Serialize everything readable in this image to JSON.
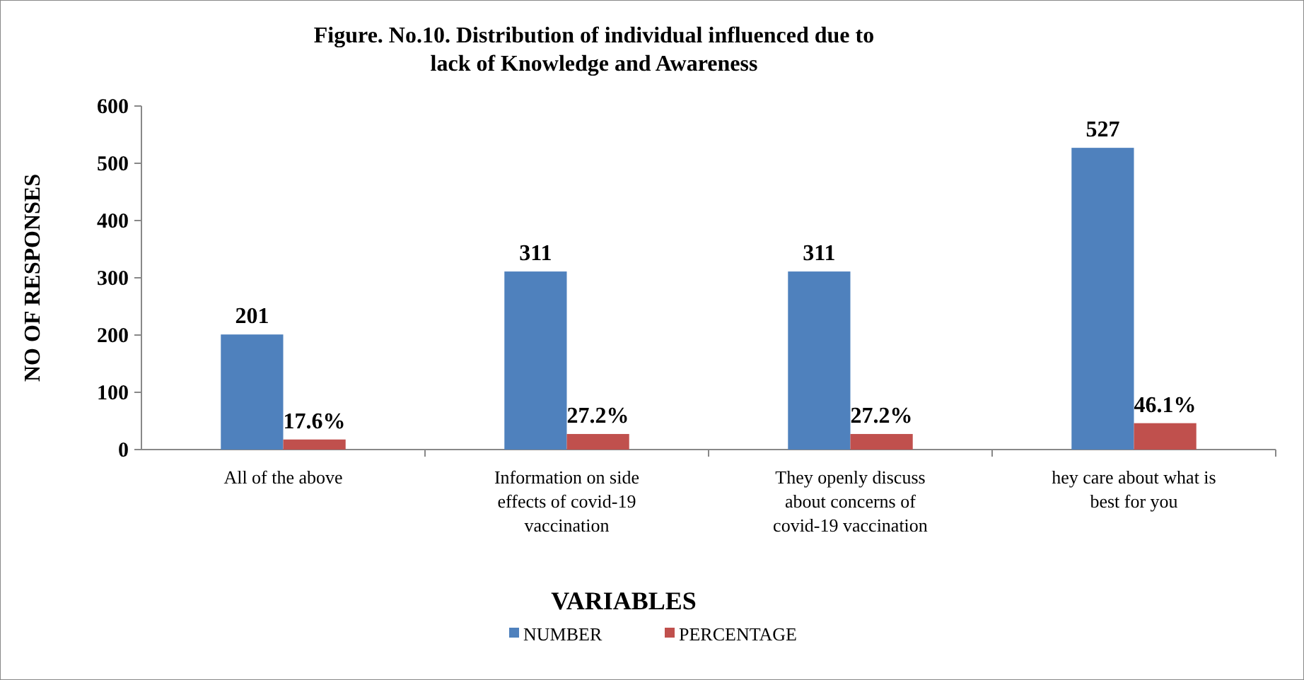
{
  "chart_data": {
    "type": "bar",
    "title": "Figure. No.10. Distribution of individual influenced due to lack of Knowledge and Awareness",
    "xlabel": "VARIABLES",
    "ylabel": "NO OF RESPONSES",
    "categories": [
      "All of the above",
      "Information on side effects of covid-19 vaccination",
      "They openly discuss about concerns of covid-19 vaccination",
      "hey care about what is best for you"
    ],
    "series": [
      {
        "name": "NUMBER",
        "color": "#4f81bd",
        "values": [
          201,
          311,
          311,
          527
        ],
        "value_labels": [
          "201",
          "311",
          "311",
          "527"
        ]
      },
      {
        "name": "PERCENTAGE",
        "color": "#c0504d",
        "values": [
          17.6,
          27.2,
          27.2,
          46.1
        ],
        "value_labels": [
          "17.6%",
          "27.2%",
          "27.2%",
          "46.1%"
        ]
      }
    ],
    "ylim": [
      0,
      600
    ],
    "yticks": [
      0,
      100,
      200,
      300,
      400,
      500,
      600
    ],
    "grid": false,
    "legend": "bottom"
  }
}
